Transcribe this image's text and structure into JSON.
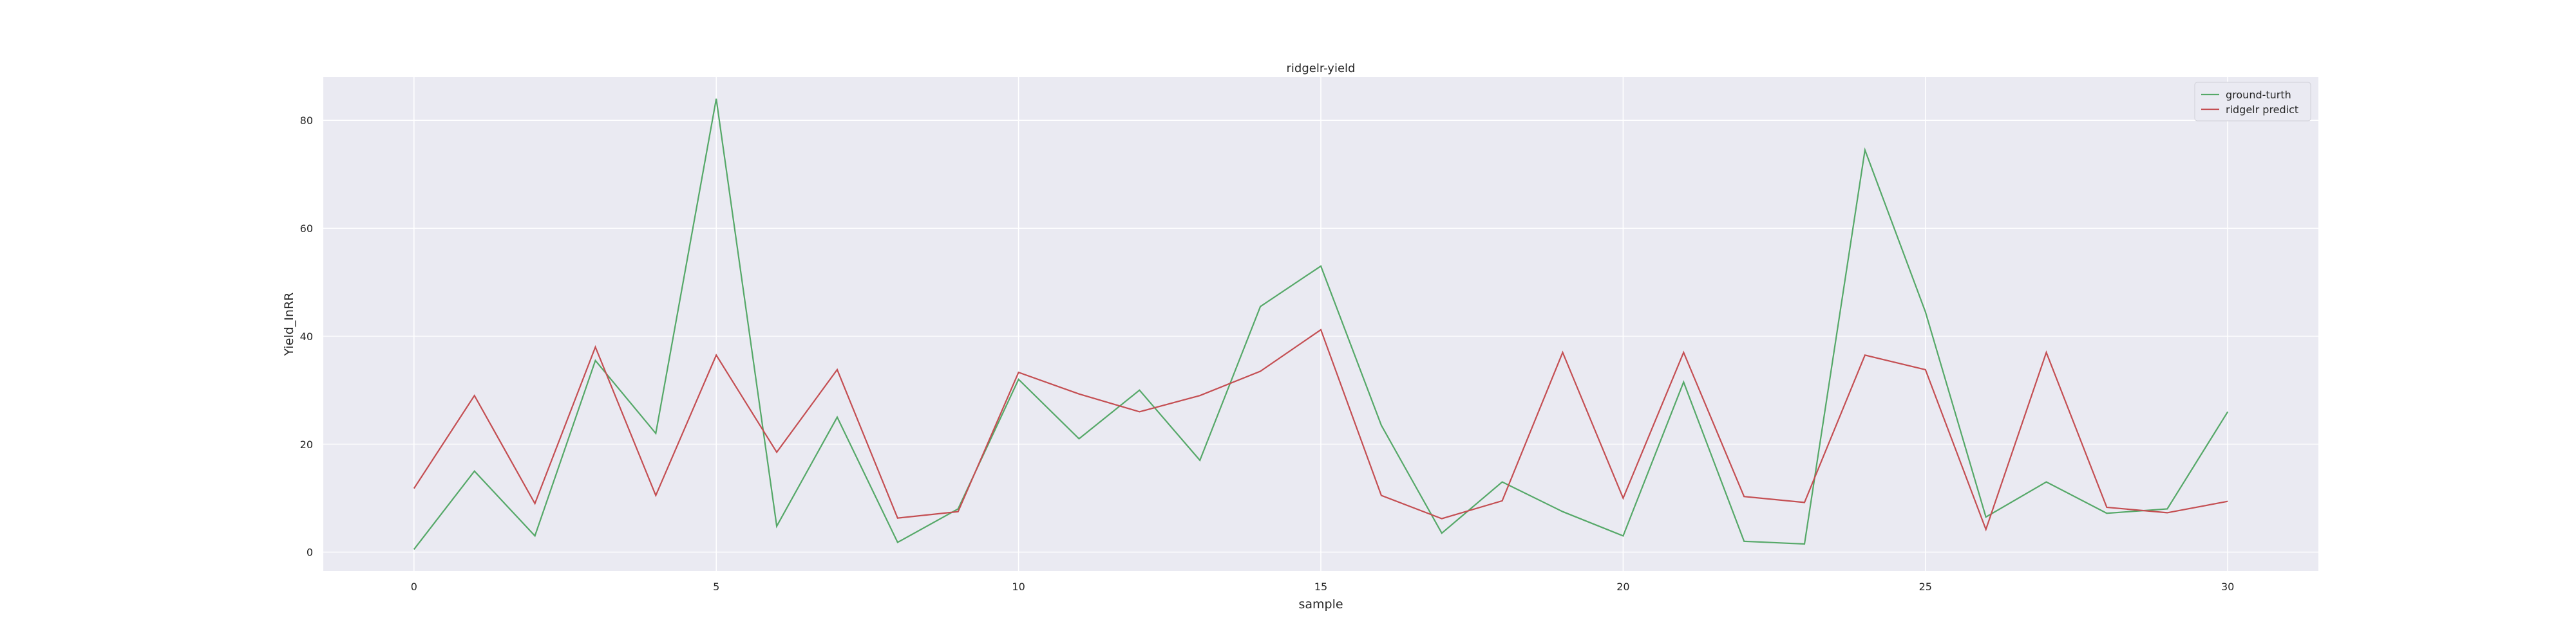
{
  "chart_data": {
    "type": "line",
    "title": "ridgelr-yield",
    "xlabel": "sample",
    "ylabel": "Yield_InRR",
    "xlim": [
      -1.5,
      31.5
    ],
    "ylim": [
      -3.5,
      88
    ],
    "xticks": [
      0,
      5,
      10,
      15,
      20,
      25,
      30
    ],
    "yticks": [
      0,
      20,
      40,
      60,
      80
    ],
    "grid": true,
    "legend_position": "top-right",
    "x": [
      0,
      1,
      2,
      3,
      4,
      5,
      6,
      7,
      8,
      9,
      10,
      11,
      12,
      13,
      14,
      15,
      16,
      17,
      18,
      19,
      20,
      21,
      22,
      23,
      24,
      25,
      26,
      27,
      28,
      29,
      30
    ],
    "series": [
      {
        "name": "ground-turth",
        "color": "#55a868",
        "values": [
          0.5,
          15,
          3,
          35.5,
          22,
          84,
          4.8,
          25,
          1.8,
          8,
          32,
          21,
          30,
          17,
          45.5,
          53,
          23.5,
          3.5,
          13,
          7.5,
          3,
          31.5,
          2,
          1.5,
          74.5,
          44.5,
          6.5,
          13,
          7.2,
          8,
          26
        ]
      },
      {
        "name": "ridgelr predict",
        "color": "#c44e52",
        "values": [
          11.8,
          29,
          9,
          38,
          10.5,
          36.5,
          18.5,
          33.8,
          6.3,
          7.5,
          33.3,
          29.3,
          26,
          29,
          33.5,
          41.2,
          10.5,
          6.2,
          9.5,
          37,
          10,
          37,
          10.3,
          9.2,
          36.5,
          33.8,
          4.2,
          37,
          8.3,
          7.3,
          9.4
        ]
      }
    ]
  }
}
